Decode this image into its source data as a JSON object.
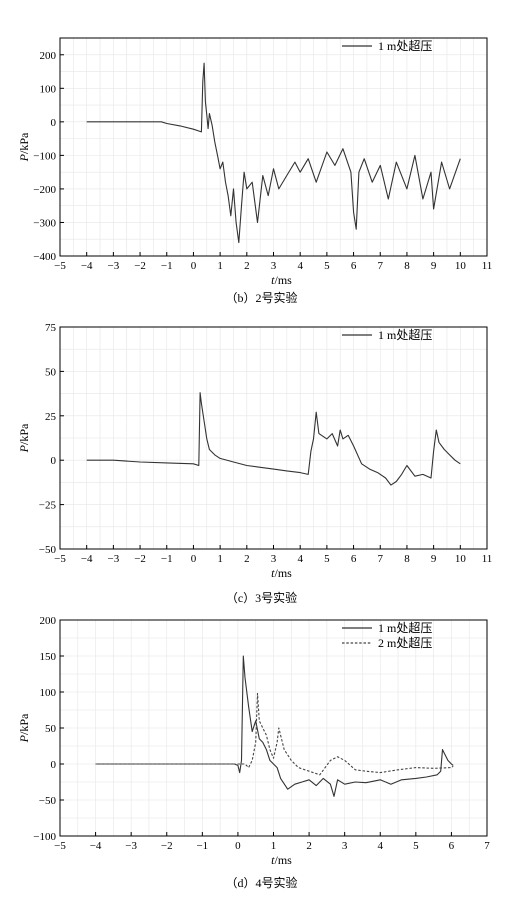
{
  "chart_data": [
    {
      "type": "line",
      "caption": "（b）2号实验",
      "xlabel_var": "t",
      "xlabel_unit": "/ms",
      "ylabel_var": "P",
      "ylabel_unit": "/kPa",
      "xlim": [
        -5,
        11
      ],
      "ylim": [
        -400,
        250
      ],
      "xticks": [
        -5,
        -4,
        -3,
        -2,
        -1,
        0,
        1,
        2,
        3,
        4,
        5,
        6,
        7,
        8,
        9,
        10,
        11
      ],
      "yticks": [
        -400,
        -300,
        -200,
        -100,
        0,
        100,
        200
      ],
      "grid": true,
      "legend_position": "top-right",
      "series": [
        {
          "name": "1 m处超压",
          "color": "#333333",
          "dash": "solid",
          "x": [
            -4,
            -3,
            -2,
            -1.2,
            -1.0,
            -0.5,
            0,
            0.3,
            0.35,
            0.4,
            0.45,
            0.5,
            0.55,
            0.6,
            0.7,
            0.8,
            0.9,
            1.0,
            1.1,
            1.2,
            1.3,
            1.4,
            1.5,
            1.6,
            1.7,
            1.8,
            1.9,
            2.0,
            2.2,
            2.4,
            2.6,
            2.8,
            3.0,
            3.2,
            3.5,
            3.8,
            4.0,
            4.3,
            4.6,
            5.0,
            5.3,
            5.6,
            5.9,
            6.0,
            6.1,
            6.2,
            6.4,
            6.7,
            7.0,
            7.3,
            7.6,
            8.0,
            8.3,
            8.6,
            8.9,
            9.0,
            9.3,
            9.6,
            10.0
          ],
          "y": [
            0,
            0,
            0,
            0,
            -5,
            -12,
            -22,
            -30,
            120,
            175,
            60,
            20,
            -20,
            25,
            -10,
            -60,
            -100,
            -140,
            -120,
            -180,
            -220,
            -280,
            -200,
            -300,
            -360,
            -250,
            -150,
            -200,
            -180,
            -300,
            -160,
            -220,
            -140,
            -200,
            -160,
            -120,
            -150,
            -110,
            -180,
            -90,
            -130,
            -80,
            -150,
            -270,
            -320,
            -150,
            -110,
            -180,
            -130,
            -230,
            -120,
            -200,
            -100,
            -230,
            -150,
            -260,
            -120,
            -200,
            -110
          ]
        }
      ]
    },
    {
      "type": "line",
      "caption": "（c）3号实验",
      "xlabel_var": "t",
      "xlabel_unit": "/ms",
      "ylabel_var": "P",
      "ylabel_unit": "/kPa",
      "xlim": [
        -5,
        11
      ],
      "ylim": [
        -50,
        75
      ],
      "xticks": [
        -5,
        -4,
        -3,
        -2,
        -1,
        0,
        1,
        2,
        3,
        4,
        5,
        6,
        7,
        8,
        9,
        10,
        11
      ],
      "yticks": [
        -50,
        -25,
        0,
        25,
        50,
        75
      ],
      "grid": true,
      "legend_position": "top-right",
      "series": [
        {
          "name": "1 m处超压",
          "color": "#333333",
          "dash": "solid",
          "x": [
            -4,
            -3,
            -2,
            -1,
            0,
            0.2,
            0.25,
            0.3,
            0.4,
            0.5,
            0.6,
            0.8,
            1.0,
            1.5,
            2.0,
            2.5,
            3.0,
            3.5,
            4.0,
            4.3,
            4.4,
            4.5,
            4.6,
            4.7,
            5.0,
            5.2,
            5.4,
            5.5,
            5.6,
            5.8,
            6.0,
            6.3,
            6.6,
            6.9,
            7.2,
            7.4,
            7.6,
            7.8,
            8.0,
            8.3,
            8.6,
            8.9,
            9.0,
            9.1,
            9.2,
            9.4,
            9.6,
            9.8,
            10.0
          ],
          "y": [
            0,
            0,
            -1,
            -1.5,
            -2,
            -3,
            38,
            32,
            22,
            12,
            6,
            3,
            1,
            -1,
            -3,
            -4,
            -5,
            -6,
            -7,
            -8,
            5,
            12,
            27,
            15,
            12,
            15,
            8,
            17,
            12,
            14,
            8,
            -2,
            -5,
            -7,
            -10,
            -14,
            -12,
            -8,
            -3,
            -9,
            -8,
            -10,
            5,
            17,
            10,
            6,
            3,
            0,
            -2
          ]
        }
      ]
    },
    {
      "type": "line",
      "caption": "（d）4号实验",
      "xlabel_var": "t",
      "xlabel_unit": "/ms",
      "ylabel_var": "P",
      "ylabel_unit": "/kPa",
      "xlim": [
        -5,
        7
      ],
      "ylim": [
        -100,
        200
      ],
      "xticks": [
        -5,
        -4,
        -3,
        -2,
        -1,
        0,
        1,
        2,
        3,
        4,
        5,
        6,
        7
      ],
      "yticks": [
        -100,
        -50,
        0,
        50,
        100,
        150,
        200
      ],
      "grid": true,
      "legend_position": "top-right",
      "series": [
        {
          "name": "1 m处超压",
          "color": "#333333",
          "dash": "solid",
          "x": [
            -4,
            -3,
            -2,
            -1,
            -0.1,
            0.0,
            0.05,
            0.1,
            0.15,
            0.2,
            0.3,
            0.4,
            0.5,
            0.6,
            0.7,
            0.8,
            0.9,
            1.0,
            1.1,
            1.2,
            1.4,
            1.6,
            1.8,
            2.0,
            2.2,
            2.4,
            2.6,
            2.7,
            2.8,
            3.0,
            3.3,
            3.6,
            4.0,
            4.3,
            4.6,
            5.0,
            5.3,
            5.6,
            5.7,
            5.75,
            5.8,
            5.9,
            6.0,
            6.05
          ],
          "y": [
            0,
            0,
            0,
            0,
            0,
            -2,
            -12,
            5,
            150,
            120,
            80,
            45,
            60,
            35,
            30,
            20,
            5,
            0,
            -5,
            -20,
            -35,
            -28,
            -25,
            -22,
            -30,
            -20,
            -28,
            -45,
            -22,
            -28,
            -25,
            -26,
            -22,
            -28,
            -22,
            -20,
            -18,
            -15,
            -10,
            20,
            15,
            5,
            0,
            -2
          ]
        },
        {
          "name": "2 m处超压",
          "color": "#444444",
          "dash": "dashed",
          "x": [
            -4,
            -3,
            -2,
            -1,
            0,
            0.2,
            0.3,
            0.4,
            0.5,
            0.55,
            0.6,
            0.7,
            0.8,
            0.9,
            1.0,
            1.1,
            1.15,
            1.2,
            1.3,
            1.5,
            1.7,
            2.0,
            2.3,
            2.6,
            2.8,
            3.0,
            3.3,
            3.6,
            4.0,
            4.5,
            5.0,
            5.5,
            6.0,
            6.05
          ],
          "y": [
            0,
            0,
            0,
            0,
            0,
            0,
            -5,
            5,
            30,
            98,
            60,
            50,
            40,
            20,
            8,
            30,
            50,
            40,
            20,
            5,
            -5,
            -10,
            -15,
            5,
            10,
            5,
            -8,
            -10,
            -12,
            -8,
            -5,
            -6,
            -5,
            -3
          ]
        }
      ]
    }
  ]
}
